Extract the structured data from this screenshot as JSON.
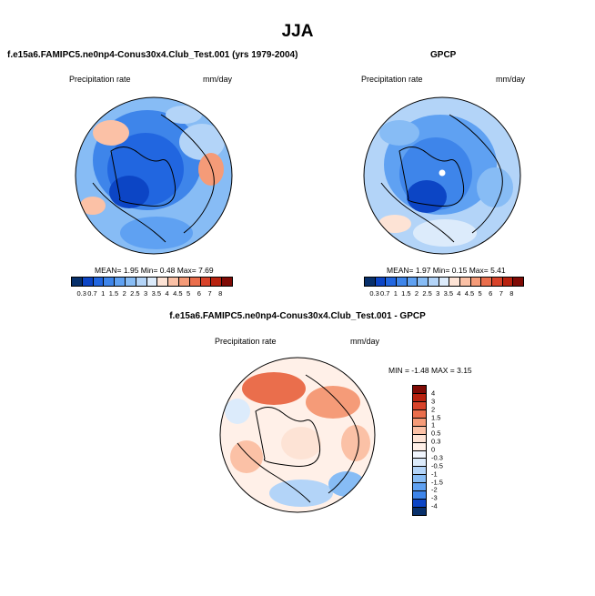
{
  "title": "JJA",
  "panels": {
    "model": {
      "title": "f.e15a6.FAMIPC5.ne0np4-Conus30x4.Club_Test.001 (yrs 1979-2004)",
      "var_label": "Precipitation rate",
      "units": "mm/day",
      "stats": "MEAN=   1.95  Min=   0.48  Max=   7.69"
    },
    "obs": {
      "title": "GPCP",
      "var_label": "Precipitation rate",
      "units": "mm/day",
      "stats": "MEAN=   1.97  Min=   0.15  Max=   5.41"
    },
    "diff": {
      "title": "f.e15a6.FAMIPC5.ne0np4-Conus30x4.Club_Test.001 - GPCP",
      "var_label": "Precipitation rate",
      "units": "mm/day",
      "stats": "MIN =  -1.48 MAX =   3.15"
    }
  },
  "colorbar_abs": {
    "ticks": [
      "0.3",
      "0.7",
      "1",
      "1.5",
      "2",
      "2.5",
      "3",
      "3.5",
      "4",
      "4.5",
      "5",
      "6",
      "7",
      "8"
    ],
    "colors": [
      "#08306b",
      "#0c45c5",
      "#2166e0",
      "#3e85ea",
      "#5fa1f2",
      "#87bcf5",
      "#b3d4f8",
      "#dcebfb",
      "#fde3d5",
      "#fbc1a6",
      "#f59b78",
      "#ea6e4c",
      "#d8432a",
      "#b8220f",
      "#7f0a05"
    ]
  },
  "colorbar_diff": {
    "ticks": [
      "4",
      "3",
      "2",
      "1.5",
      "1",
      "0.5",
      "0.3",
      "0",
      "-0.3",
      "-0.5",
      "-1",
      "-1.5",
      "-2",
      "-3",
      "-4"
    ],
    "colors": [
      "#7f0a05",
      "#b8220f",
      "#d8432a",
      "#ea6e4c",
      "#f59b78",
      "#fbc1a6",
      "#fde3d5",
      "#fff0e8",
      "#f0f5fd",
      "#dcebfb",
      "#b3d4f8",
      "#87bcf5",
      "#5fa1f2",
      "#3e85ea",
      "#0c45c5",
      "#08306b"
    ]
  },
  "colors": {
    "land_outline": "#000000"
  }
}
